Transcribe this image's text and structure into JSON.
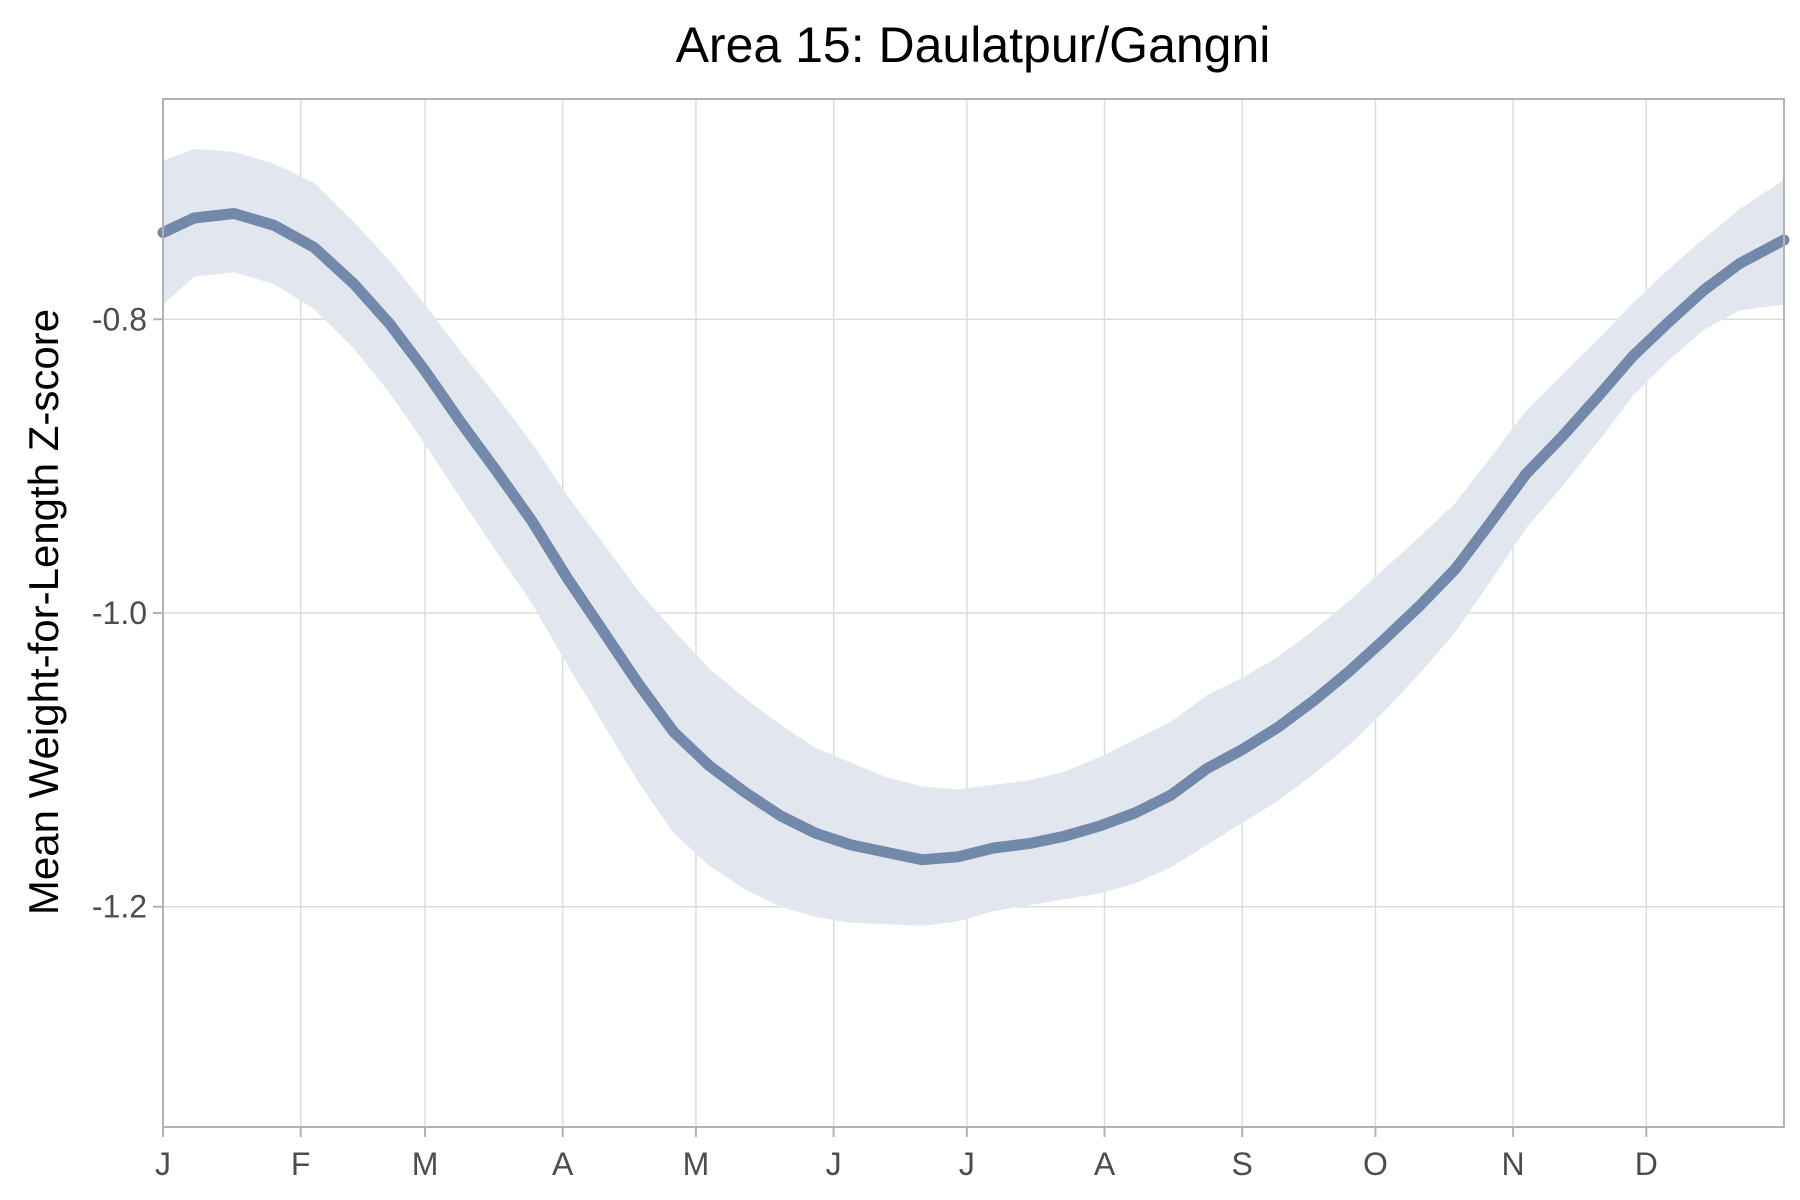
{
  "chart_data": {
    "type": "line",
    "title": "Area 15: Daulatpur/Gangni",
    "xlabel": "",
    "ylabel": "Mean Weight-for-Length Z-score",
    "x_ticks": [
      "J",
      "F",
      "M",
      "A",
      "M",
      "J",
      "J",
      "A",
      "S",
      "O",
      "N",
      "D"
    ],
    "xlim": [
      1,
      366
    ],
    "ylim": [
      -1.35,
      -0.65
    ],
    "y_ticks": [
      -0.8,
      -1.0,
      -1.2
    ],
    "y_tick_labels": [
      "-0.8",
      "-1.0",
      "-1.2"
    ],
    "grid": true,
    "legend": "none",
    "series": [
      {
        "x": [
          1,
          8,
          17,
          26,
          35,
          44,
          52,
          60,
          68,
          76,
          84,
          92,
          100,
          108,
          116,
          124,
          132,
          140,
          148,
          156,
          164,
          172,
          180,
          188,
          196,
          204,
          212,
          220,
          228,
          236,
          244,
          252,
          260,
          268,
          276,
          284,
          292,
          300,
          308,
          316,
          324,
          332,
          340,
          348,
          356,
          366
        ],
        "y": [
          -0.741,
          -0.731,
          -0.728,
          -0.736,
          -0.751,
          -0.776,
          -0.803,
          -0.835,
          -0.87,
          -0.903,
          -0.937,
          -0.976,
          -1.012,
          -1.048,
          -1.081,
          -1.104,
          -1.122,
          -1.138,
          -1.15,
          -1.158,
          -1.163,
          -1.168,
          -1.166,
          -1.16,
          -1.157,
          -1.152,
          -1.145,
          -1.136,
          -1.124,
          -1.106,
          -1.093,
          -1.078,
          -1.06,
          -1.04,
          -1.018,
          -0.995,
          -0.97,
          -0.938,
          -0.905,
          -0.88,
          -0.853,
          -0.825,
          -0.802,
          -0.78,
          -0.762,
          -0.746
        ],
        "lower": [
          -0.79,
          -0.771,
          -0.768,
          -0.776,
          -0.793,
          -0.82,
          -0.85,
          -0.885,
          -0.922,
          -0.958,
          -0.993,
          -1.035,
          -1.075,
          -1.115,
          -1.15,
          -1.172,
          -1.188,
          -1.2,
          -1.207,
          -1.211,
          -1.212,
          -1.213,
          -1.21,
          -1.203,
          -1.199,
          -1.195,
          -1.191,
          -1.184,
          -1.173,
          -1.158,
          -1.143,
          -1.128,
          -1.11,
          -1.09,
          -1.067,
          -1.041,
          -1.013,
          -0.978,
          -0.942,
          -0.914,
          -0.884,
          -0.852,
          -0.828,
          -0.807,
          -0.794,
          -0.79
        ],
        "upper": [
          -0.692,
          -0.684,
          -0.686,
          -0.694,
          -0.707,
          -0.734,
          -0.76,
          -0.79,
          -0.822,
          -0.852,
          -0.884,
          -0.92,
          -0.952,
          -0.985,
          -1.012,
          -1.038,
          -1.058,
          -1.076,
          -1.092,
          -1.102,
          -1.112,
          -1.118,
          -1.12,
          -1.117,
          -1.114,
          -1.108,
          -1.098,
          -1.086,
          -1.074,
          -1.056,
          -1.044,
          -1.03,
          -1.012,
          -0.992,
          -0.97,
          -0.948,
          -0.925,
          -0.894,
          -0.862,
          -0.838,
          -0.814,
          -0.789,
          -0.766,
          -0.745,
          -0.725,
          -0.705
        ]
      }
    ],
    "colors": {
      "line": "#7289ab",
      "ribbon": "#e2e7ef",
      "grid": "#dcdcdc",
      "panel_border": "#b3b3b3"
    }
  }
}
